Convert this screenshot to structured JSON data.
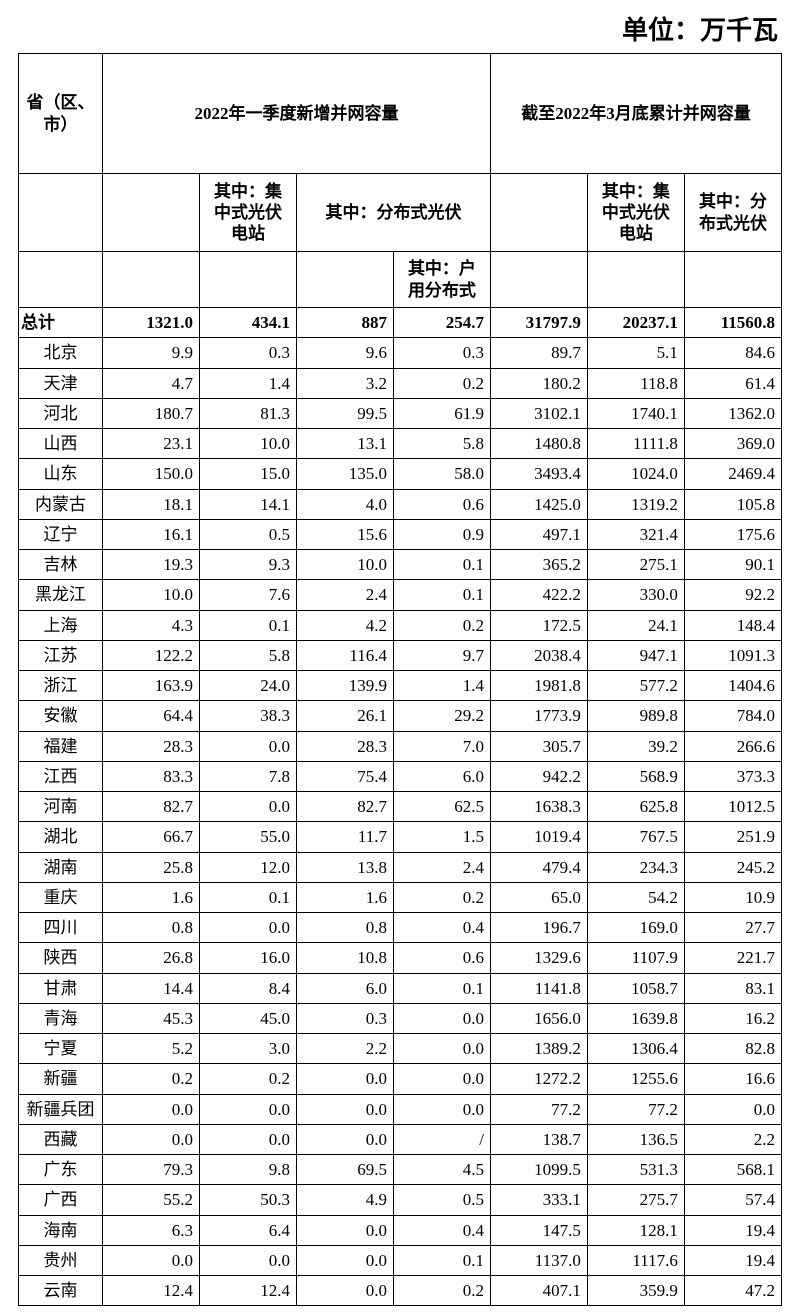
{
  "unit_label": "单位：万千瓦",
  "headers": {
    "province": "省（区、市）",
    "q1_new": "2022年一季度新增并网容量",
    "cumulative": "截至2022年3月底累计并网容量",
    "centralized": "其中：集中式光伏电站",
    "distributed": "其中：分布式光伏",
    "household": "其中：户用分布式",
    "centralized_cum": "其中：集中式光伏电站",
    "distributed_cum": "其中：分布式光伏"
  },
  "total_label": "总计",
  "total": [
    "1321.0",
    "434.1",
    "887",
    "254.7",
    "31797.9",
    "20237.1",
    "11560.8"
  ],
  "rows": [
    {
      "p": "北京",
      "v": [
        "9.9",
        "0.3",
        "9.6",
        "0.3",
        "89.7",
        "5.1",
        "84.6"
      ]
    },
    {
      "p": "天津",
      "v": [
        "4.7",
        "1.4",
        "3.2",
        "0.2",
        "180.2",
        "118.8",
        "61.4"
      ]
    },
    {
      "p": "河北",
      "v": [
        "180.7",
        "81.3",
        "99.5",
        "61.9",
        "3102.1",
        "1740.1",
        "1362.0"
      ]
    },
    {
      "p": "山西",
      "v": [
        "23.1",
        "10.0",
        "13.1",
        "5.8",
        "1480.8",
        "1111.8",
        "369.0"
      ]
    },
    {
      "p": "山东",
      "v": [
        "150.0",
        "15.0",
        "135.0",
        "58.0",
        "3493.4",
        "1024.0",
        "2469.4"
      ]
    },
    {
      "p": "内蒙古",
      "v": [
        "18.1",
        "14.1",
        "4.0",
        "0.6",
        "1425.0",
        "1319.2",
        "105.8"
      ]
    },
    {
      "p": "辽宁",
      "v": [
        "16.1",
        "0.5",
        "15.6",
        "0.9",
        "497.1",
        "321.4",
        "175.6"
      ]
    },
    {
      "p": "吉林",
      "v": [
        "19.3",
        "9.3",
        "10.0",
        "0.1",
        "365.2",
        "275.1",
        "90.1"
      ]
    },
    {
      "p": "黑龙江",
      "v": [
        "10.0",
        "7.6",
        "2.4",
        "0.1",
        "422.2",
        "330.0",
        "92.2"
      ]
    },
    {
      "p": "上海",
      "v": [
        "4.3",
        "0.1",
        "4.2",
        "0.2",
        "172.5",
        "24.1",
        "148.4"
      ]
    },
    {
      "p": "江苏",
      "v": [
        "122.2",
        "5.8",
        "116.4",
        "9.7",
        "2038.4",
        "947.1",
        "1091.3"
      ]
    },
    {
      "p": "浙江",
      "v": [
        "163.9",
        "24.0",
        "139.9",
        "1.4",
        "1981.8",
        "577.2",
        "1404.6"
      ]
    },
    {
      "p": "安徽",
      "v": [
        "64.4",
        "38.3",
        "26.1",
        "29.2",
        "1773.9",
        "989.8",
        "784.0"
      ]
    },
    {
      "p": "福建",
      "v": [
        "28.3",
        "0.0",
        "28.3",
        "7.0",
        "305.7",
        "39.2",
        "266.6"
      ]
    },
    {
      "p": "江西",
      "v": [
        "83.3",
        "7.8",
        "75.4",
        "6.0",
        "942.2",
        "568.9",
        "373.3"
      ]
    },
    {
      "p": "河南",
      "v": [
        "82.7",
        "0.0",
        "82.7",
        "62.5",
        "1638.3",
        "625.8",
        "1012.5"
      ]
    },
    {
      "p": "湖北",
      "v": [
        "66.7",
        "55.0",
        "11.7",
        "1.5",
        "1019.4",
        "767.5",
        "251.9"
      ]
    },
    {
      "p": "湖南",
      "v": [
        "25.8",
        "12.0",
        "13.8",
        "2.4",
        "479.4",
        "234.3",
        "245.2"
      ]
    },
    {
      "p": "重庆",
      "v": [
        "1.6",
        "0.1",
        "1.6",
        "0.2",
        "65.0",
        "54.2",
        "10.9"
      ]
    },
    {
      "p": "四川",
      "v": [
        "0.8",
        "0.0",
        "0.8",
        "0.4",
        "196.7",
        "169.0",
        "27.7"
      ]
    },
    {
      "p": "陕西",
      "v": [
        "26.8",
        "16.0",
        "10.8",
        "0.6",
        "1329.6",
        "1107.9",
        "221.7"
      ]
    },
    {
      "p": "甘肃",
      "v": [
        "14.4",
        "8.4",
        "6.0",
        "0.1",
        "1141.8",
        "1058.7",
        "83.1"
      ]
    },
    {
      "p": "青海",
      "v": [
        "45.3",
        "45.0",
        "0.3",
        "0.0",
        "1656.0",
        "1639.8",
        "16.2"
      ]
    },
    {
      "p": "宁夏",
      "v": [
        "5.2",
        "3.0",
        "2.2",
        "0.0",
        "1389.2",
        "1306.4",
        "82.8"
      ]
    },
    {
      "p": "新疆",
      "v": [
        "0.2",
        "0.2",
        "0.0",
        "0.0",
        "1272.2",
        "1255.6",
        "16.6"
      ]
    },
    {
      "p": "新疆兵团",
      "v": [
        "0.0",
        "0.0",
        "0.0",
        "0.0",
        "77.2",
        "77.2",
        "0.0"
      ]
    },
    {
      "p": "西藏",
      "v": [
        "0.0",
        "0.0",
        "0.0",
        "/",
        "138.7",
        "136.5",
        "2.2"
      ]
    },
    {
      "p": "广东",
      "v": [
        "79.3",
        "9.8",
        "69.5",
        "4.5",
        "1099.5",
        "531.3",
        "568.1"
      ]
    },
    {
      "p": "广西",
      "v": [
        "55.2",
        "50.3",
        "4.9",
        "0.5",
        "333.1",
        "275.7",
        "57.4"
      ]
    },
    {
      "p": "海南",
      "v": [
        "6.3",
        "6.4",
        "0.0",
        "0.4",
        "147.5",
        "128.1",
        "19.4"
      ]
    },
    {
      "p": "贵州",
      "v": [
        "0.0",
        "0.0",
        "0.0",
        "0.1",
        "1137.0",
        "1117.6",
        "19.4"
      ]
    },
    {
      "p": "云南",
      "v": [
        "12.4",
        "12.4",
        "0.0",
        "0.2",
        "407.1",
        "359.9",
        "47.2"
      ]
    }
  ],
  "style": {
    "font_family": "SimSun",
    "border_color": "#000000",
    "background": "#ffffff",
    "header_fontsize": 17,
    "cell_fontsize": 17,
    "unit_fontsize": 26
  }
}
